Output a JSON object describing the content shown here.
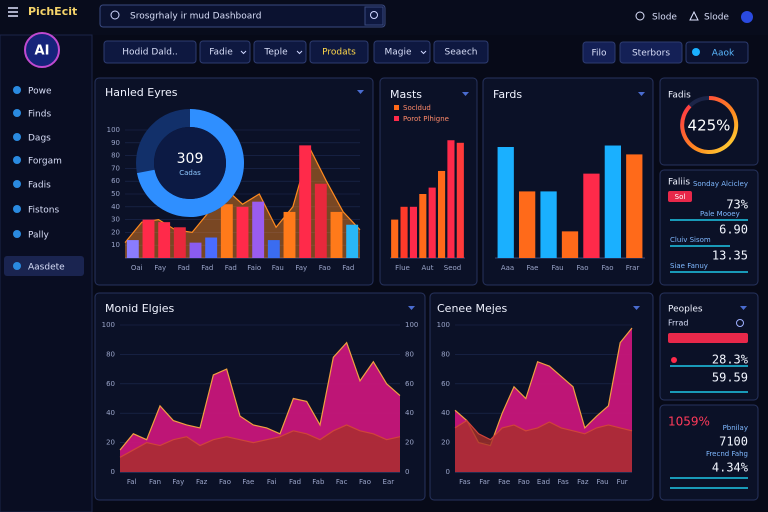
{
  "app": {
    "logo": "PichEcit",
    "search": "Srosgrhaly ir mud Dashboard",
    "top_links": [
      "Slode",
      "Slode"
    ],
    "avatar": "AI"
  },
  "nav": [
    "Powe",
    "Finds",
    "Dags",
    "Forgam",
    "Fadis",
    "Fistons",
    "Pally",
    "Aasdete"
  ],
  "toolbar": {
    "filters": [
      "Hodid Dald..",
      "Fadie",
      "Teple",
      "Prodats",
      "Magie",
      "Seaech"
    ],
    "actions": [
      "Filo",
      "Sterbors",
      "Aaok"
    ]
  },
  "panels": {
    "hanled": {
      "title": "Hanled Eyres",
      "ylim": [
        0,
        100
      ],
      "yticks": [
        10,
        20,
        30,
        40,
        50,
        60,
        70,
        80,
        90,
        100
      ],
      "xlabels": [
        "Oai",
        "Fay",
        "Fad",
        "Fad",
        "Fad",
        "Faio",
        "Fau",
        "Fay",
        "Fao",
        "Fad"
      ],
      "bars": {
        "values": [
          14,
          30,
          28,
          24,
          12,
          16,
          42,
          40,
          44,
          14,
          36,
          88,
          58,
          36,
          26
        ],
        "colors": [
          "#8a7cff",
          "#ff2a4a",
          "#ff2a4a",
          "#e8283c",
          "#8a5cf0",
          "#4a6cff",
          "#ff7a1a",
          "#ff2a4a",
          "#9a5cf0",
          "#3a6cf0",
          "#ff7a1a",
          "#ff2a4a",
          "#e8283c",
          "#ff7a1a",
          "#29b6f6"
        ]
      },
      "line": {
        "color": "#ff8a1e",
        "values": [
          12,
          28,
          30,
          22,
          20,
          36,
          54,
          42,
          50,
          24,
          40,
          86,
          60,
          36,
          22
        ]
      },
      "donut": {
        "value": "309",
        "label": "Cadas",
        "share": 72,
        "colors": [
          "#2f8fff",
          "#12306a"
        ]
      }
    },
    "masts": {
      "title": "Masts",
      "legend": [
        {
          "name": "Socldud",
          "color": "#ff6a1a"
        },
        {
          "name": "Porot Plhigne",
          "color": "#ff2a4a"
        }
      ],
      "ylim": [
        0,
        100
      ],
      "xlabels": [
        "Flue",
        "Aut",
        "Seod"
      ],
      "bars": {
        "values": [
          30,
          40,
          40,
          50,
          55,
          68,
          92,
          90
        ],
        "colors": [
          "#ff6a1a",
          "#ff3a2a",
          "#ff2a4a",
          "#ff6a1a",
          "#ff2a4a",
          "#ff6a1a",
          "#ff2a4a",
          "#ff3a3a"
        ]
      }
    },
    "fards": {
      "title": "Fards",
      "ylim": [
        0,
        100
      ],
      "xlabels": [
        "Aaa",
        "Fae",
        "Fau",
        "Fao",
        "Fao",
        "Frar"
      ],
      "bars": {
        "values": [
          75,
          45,
          45,
          18,
          57,
          76,
          70
        ],
        "colors": [
          "#1ab0ff",
          "#ff6a1a",
          "#1ab0ff",
          "#ff6a1a",
          "#ff2a4a",
          "#1ab0ff",
          "#ff6a1a"
        ]
      }
    },
    "monid": {
      "title": "Monid Elgies",
      "ylim": [
        0,
        100
      ],
      "yticks": [
        0,
        20,
        40,
        60,
        80,
        100
      ],
      "y2lim": [
        0,
        100
      ],
      "y2ticks": [
        0,
        20,
        40,
        60,
        80,
        100
      ],
      "xlabels": [
        "Fal",
        "Fan",
        "Fay",
        "Faz",
        "Fao",
        "Fae",
        "Fai",
        "Fad",
        "Fab",
        "Fac",
        "Fao",
        "Ear"
      ],
      "series": [
        {
          "color": "#c8167a",
          "values": [
            15,
            26,
            22,
            45,
            35,
            32,
            30,
            66,
            70,
            38,
            32,
            30,
            26,
            50,
            48,
            32,
            78,
            88,
            62,
            75,
            60,
            52
          ]
        },
        {
          "color": "#a8302a",
          "values": [
            10,
            15,
            20,
            18,
            22,
            24,
            18,
            22,
            24,
            22,
            20,
            22,
            24,
            28,
            26,
            22,
            28,
            32,
            28,
            26,
            22,
            24
          ]
        }
      ]
    },
    "cenee": {
      "title": "Cenee Mejes",
      "ylim": [
        0,
        100
      ],
      "yticks": [
        0,
        20,
        40,
        60,
        80,
        100
      ],
      "xlabels": [
        "Fas",
        "Far",
        "Fae",
        "Fao",
        "Ead",
        "Fas",
        "Faz",
        "Fau",
        "Fur"
      ],
      "series": [
        {
          "color": "#c8167a",
          "values": [
            42,
            35,
            20,
            18,
            40,
            58,
            50,
            75,
            72,
            65,
            58,
            30,
            38,
            45,
            88,
            98
          ]
        },
        {
          "color": "#a8302a",
          "values": [
            30,
            35,
            26,
            22,
            30,
            32,
            28,
            30,
            34,
            30,
            28,
            26,
            30,
            32,
            30,
            28
          ]
        }
      ]
    },
    "gauge": {
      "title": "Fadis",
      "value": "425%"
    },
    "stats": {
      "title": "Faliis",
      "subtitle": "Sonday Alcicley",
      "tag": "Sol",
      "items": [
        {
          "label": "Pale Mooey",
          "value": "73%"
        },
        {
          "label": "Cluiv Sisom",
          "value": "6.90"
        },
        {
          "label": "Siae Fanuy",
          "value": "13.35"
        }
      ]
    },
    "peoples": {
      "title": "Peoples",
      "search": "Frrad",
      "values": [
        "28.3%",
        "59.59"
      ]
    },
    "summary": {
      "headline": "1059%",
      "items": [
        {
          "label": "Pbnilay",
          "value": "7100"
        },
        {
          "label": "Frecnd Fahg",
          "value": "4.34%"
        }
      ]
    }
  }
}
